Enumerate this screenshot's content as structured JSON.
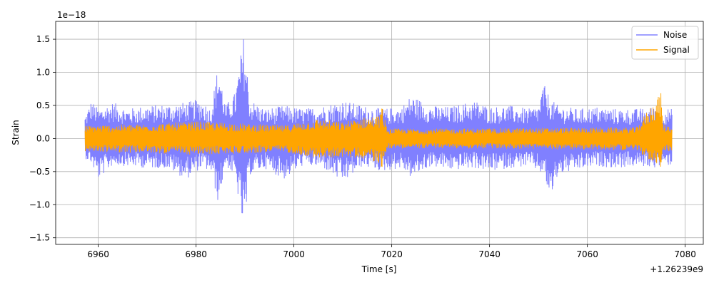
{
  "chart_data": {
    "type": "line",
    "xlabel": "Time [s]",
    "ylabel": "Strain",
    "x_offset_label": "+1.26239e9",
    "y_scale_label": "1e−18",
    "xlim": [
      6951.3,
      7083.7
    ],
    "ylim": [
      -1.6,
      1.77
    ],
    "x_ticks": [
      6960,
      6980,
      7000,
      7020,
      7040,
      7060,
      7080
    ],
    "x_tick_labels": [
      "6960",
      "6980",
      "7000",
      "7020",
      "7040",
      "7060",
      "7080"
    ],
    "y_ticks": [
      -1.5,
      -1.0,
      -0.5,
      0.0,
      0.5,
      1.0,
      1.5
    ],
    "y_tick_labels": [
      "−1.5",
      "−1.0",
      "−0.5",
      "0.0",
      "0.5",
      "1.0",
      "1.5"
    ],
    "grid": true,
    "legend_position": "top-right",
    "series": [
      {
        "name": "Noise",
        "color": "#8080ff",
        "x_range": [
          6957.3,
          7077.3
        ],
        "envelope": [
          {
            "x": 6957.3,
            "upper": 0.35,
            "lower": -0.3
          },
          {
            "x": 6958.6,
            "upper": 0.58,
            "lower": -0.38
          },
          {
            "x": 6960.0,
            "upper": 0.45,
            "lower": -0.62
          },
          {
            "x": 6963.0,
            "upper": 0.55,
            "lower": -0.4
          },
          {
            "x": 6966.0,
            "upper": 0.45,
            "lower": -0.42
          },
          {
            "x": 6970.0,
            "upper": 0.5,
            "lower": -0.45
          },
          {
            "x": 6974.0,
            "upper": 0.52,
            "lower": -0.45
          },
          {
            "x": 6978.0,
            "upper": 0.55,
            "lower": -0.62
          },
          {
            "x": 6981.0,
            "upper": 0.6,
            "lower": -0.45
          },
          {
            "x": 6983.0,
            "upper": 0.45,
            "lower": -0.5
          },
          {
            "x": 6984.6,
            "upper": 1.16,
            "lower": -1.0
          },
          {
            "x": 6986.0,
            "upper": 0.5,
            "lower": -0.4
          },
          {
            "x": 6988.0,
            "upper": 0.7,
            "lower": -0.6
          },
          {
            "x": 6989.8,
            "upper": 1.6,
            "lower": -1.46
          },
          {
            "x": 6991.0,
            "upper": 0.6,
            "lower": -0.55
          },
          {
            "x": 6994.0,
            "upper": 0.45,
            "lower": -0.45
          },
          {
            "x": 6998.0,
            "upper": 0.5,
            "lower": -0.62
          },
          {
            "x": 7002.0,
            "upper": 0.45,
            "lower": -0.4
          },
          {
            "x": 7006.0,
            "upper": 0.5,
            "lower": -0.45
          },
          {
            "x": 7010.0,
            "upper": 0.58,
            "lower": -0.68
          },
          {
            "x": 7014.0,
            "upper": 0.5,
            "lower": -0.42
          },
          {
            "x": 7018.0,
            "upper": 0.45,
            "lower": -0.5
          },
          {
            "x": 7022.0,
            "upper": 0.48,
            "lower": -0.45
          },
          {
            "x": 7024.0,
            "upper": 0.66,
            "lower": -0.6
          },
          {
            "x": 7028.0,
            "upper": 0.5,
            "lower": -0.42
          },
          {
            "x": 7032.0,
            "upper": 0.48,
            "lower": -0.48
          },
          {
            "x": 7037.0,
            "upper": 0.58,
            "lower": -0.45
          },
          {
            "x": 7040.0,
            "upper": 0.48,
            "lower": -0.5
          },
          {
            "x": 7044.0,
            "upper": 0.5,
            "lower": -0.45
          },
          {
            "x": 7048.0,
            "upper": 0.45,
            "lower": -0.42
          },
          {
            "x": 7050.0,
            "upper": 0.5,
            "lower": -0.5
          },
          {
            "x": 7051.0,
            "upper": 0.84,
            "lower": -0.55
          },
          {
            "x": 7052.5,
            "upper": 0.6,
            "lower": -0.94
          },
          {
            "x": 7054.0,
            "upper": 0.5,
            "lower": -0.55
          },
          {
            "x": 7058.0,
            "upper": 0.45,
            "lower": -0.48
          },
          {
            "x": 7062.0,
            "upper": 0.48,
            "lower": -0.42
          },
          {
            "x": 7066.0,
            "upper": 0.45,
            "lower": -0.45
          },
          {
            "x": 7070.0,
            "upper": 0.45,
            "lower": -0.42
          },
          {
            "x": 7074.0,
            "upper": 0.48,
            "lower": -0.44
          },
          {
            "x": 7077.3,
            "upper": 0.45,
            "lower": -0.4
          }
        ]
      },
      {
        "name": "Signal",
        "color": "#ffa500",
        "x_range": [
          6957.3,
          7077.3
        ],
        "envelope": [
          {
            "x": 6957.3,
            "upper": 0.2,
            "lower": -0.2
          },
          {
            "x": 6970.0,
            "upper": 0.22,
            "lower": -0.22
          },
          {
            "x": 6980.0,
            "upper": 0.26,
            "lower": -0.25
          },
          {
            "x": 6992.0,
            "upper": 0.22,
            "lower": -0.22
          },
          {
            "x": 6998.0,
            "upper": 0.2,
            "lower": -0.2
          },
          {
            "x": 7002.0,
            "upper": 0.26,
            "lower": -0.26
          },
          {
            "x": 7005.0,
            "upper": 0.3,
            "lower": -0.3
          },
          {
            "x": 7010.0,
            "upper": 0.25,
            "lower": -0.28
          },
          {
            "x": 7014.0,
            "upper": 0.32,
            "lower": -0.3
          },
          {
            "x": 7017.6,
            "upper": 0.35,
            "lower": -0.38
          },
          {
            "x": 7018.0,
            "upper": 0.52,
            "lower": -0.45
          },
          {
            "x": 7019.0,
            "upper": 0.15,
            "lower": -0.15
          },
          {
            "x": 7030.0,
            "upper": 0.15,
            "lower": -0.15
          },
          {
            "x": 7050.0,
            "upper": 0.16,
            "lower": -0.16
          },
          {
            "x": 7070.0,
            "upper": 0.17,
            "lower": -0.18
          },
          {
            "x": 7075.0,
            "upper": 0.72,
            "lower": -0.45
          },
          {
            "x": 7075.5,
            "upper": 0.22,
            "lower": -0.2
          },
          {
            "x": 7077.3,
            "upper": 0.18,
            "lower": -0.18
          }
        ]
      }
    ]
  }
}
